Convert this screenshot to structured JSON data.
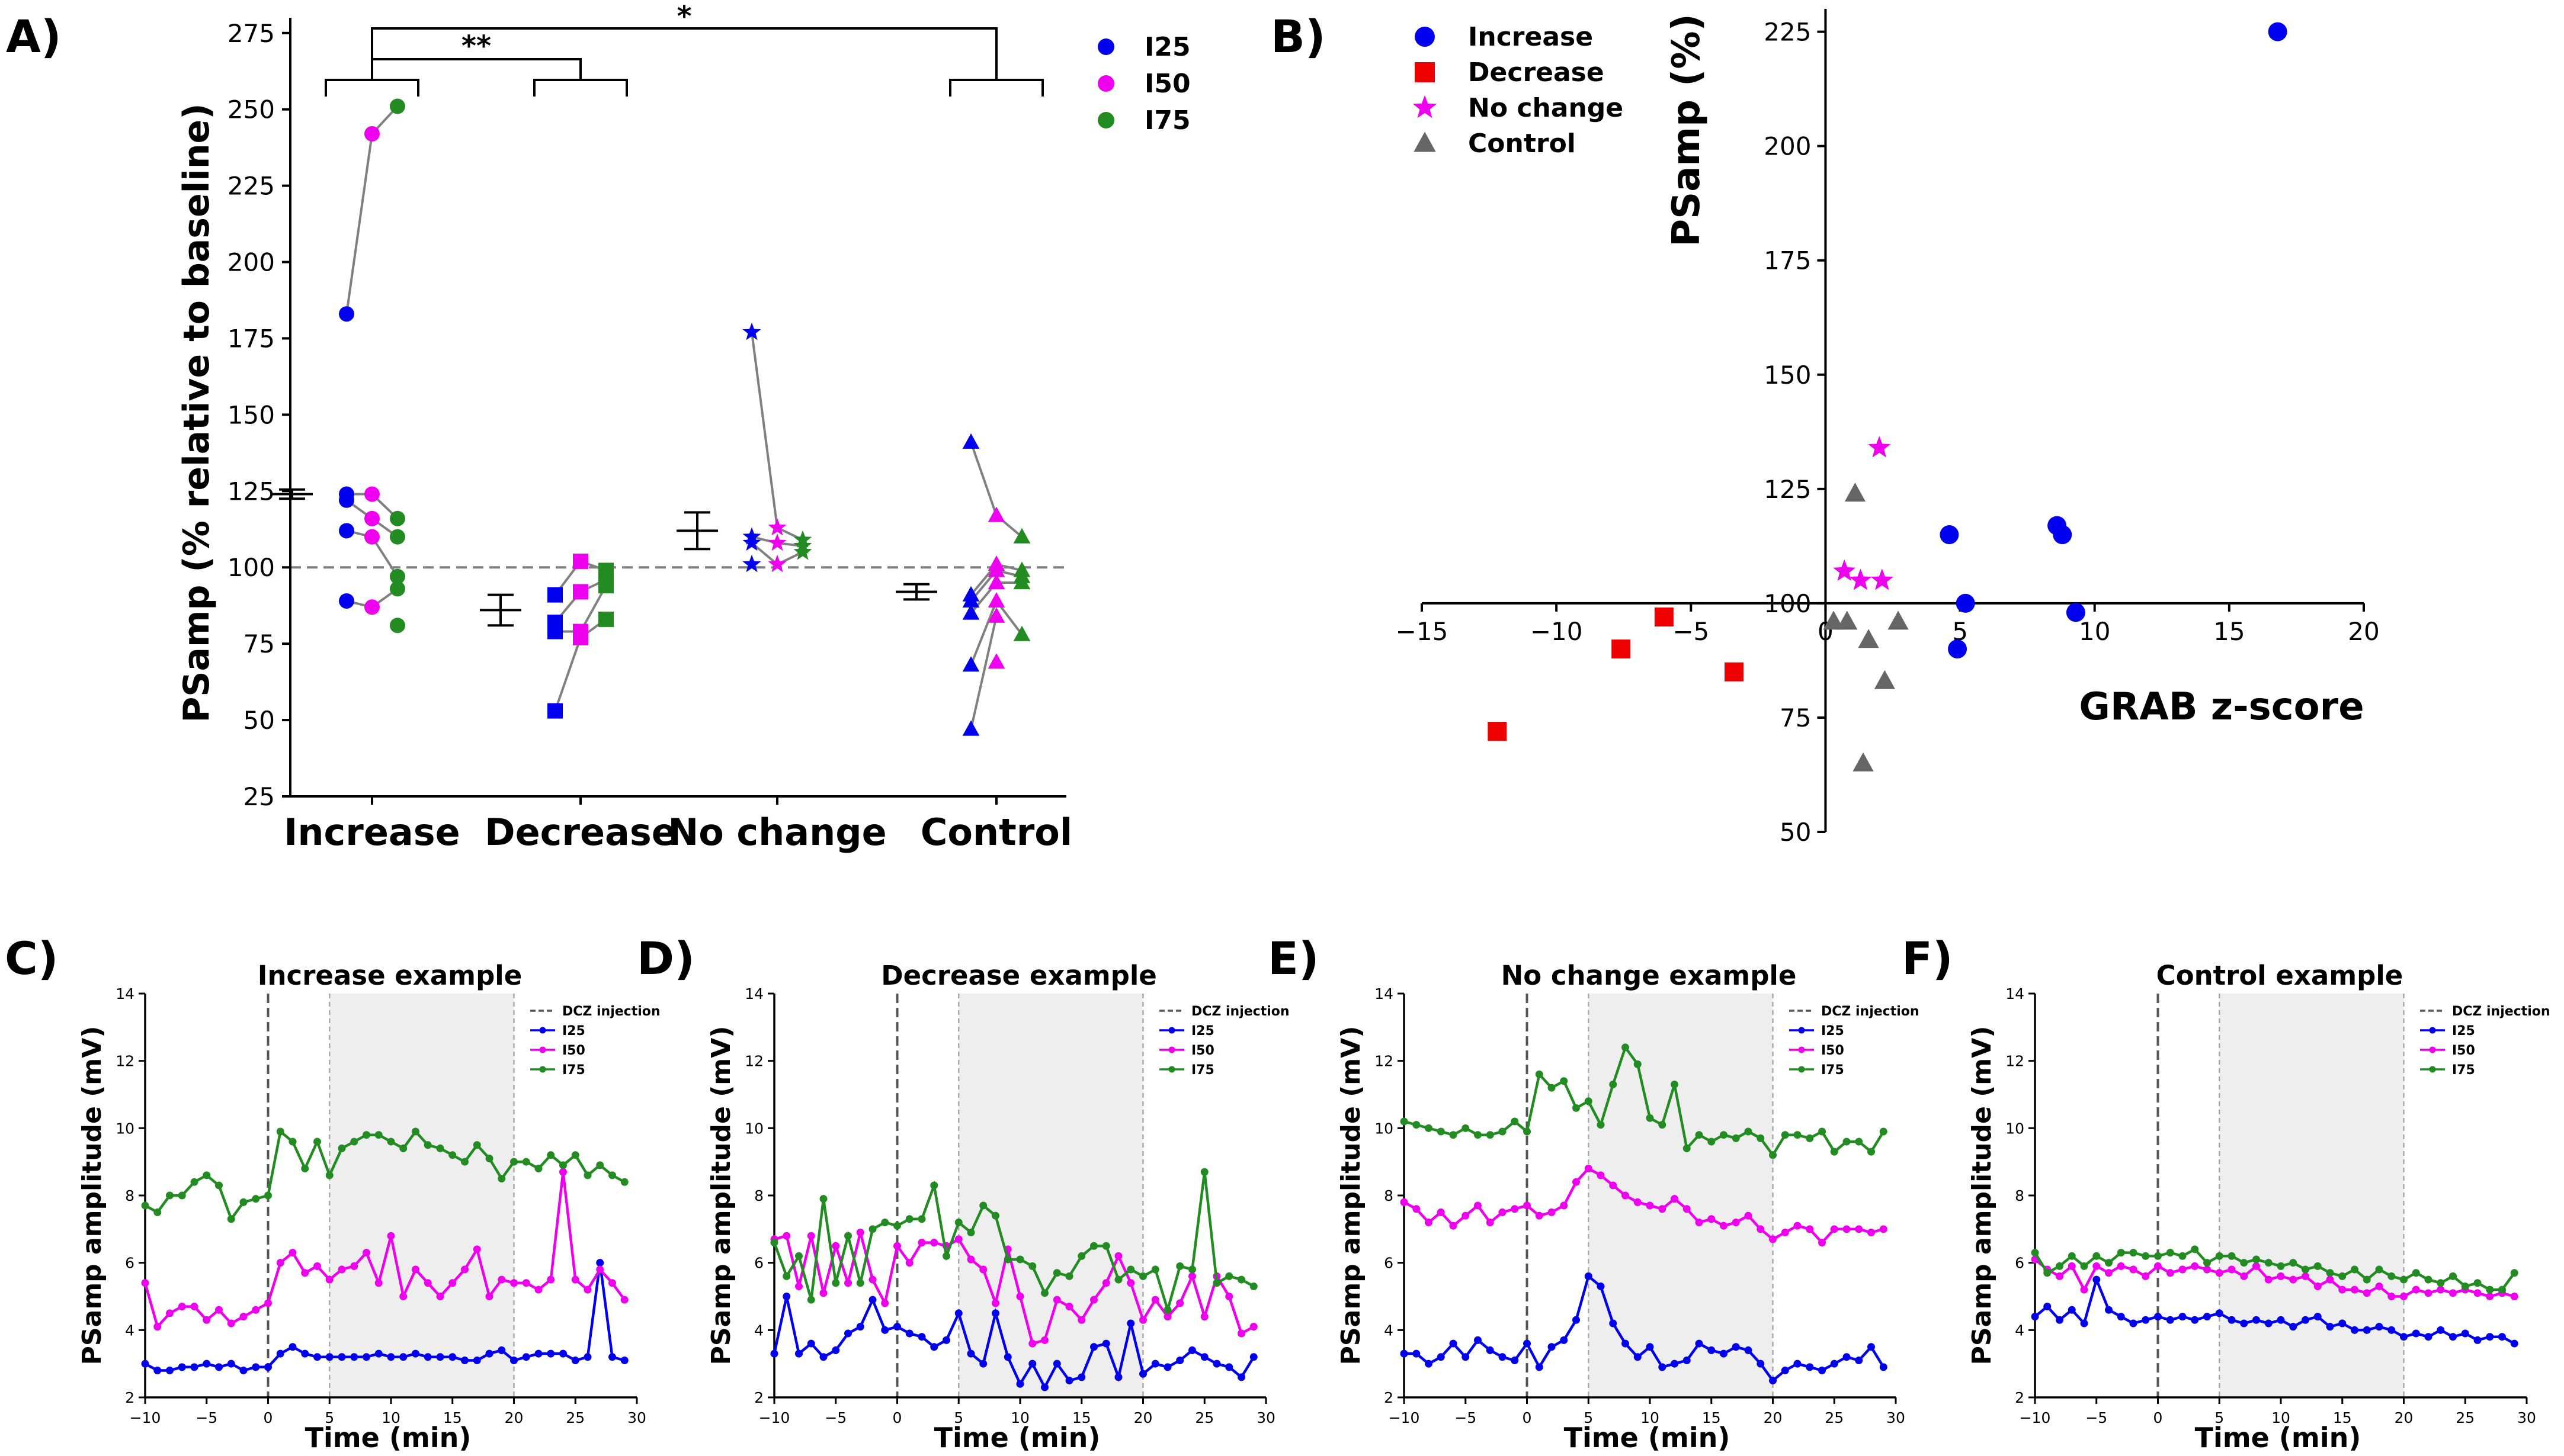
{
  "figure": {
    "panel_labels": [
      "A)",
      "B)",
      "C)",
      "D)",
      "E)",
      "F)"
    ],
    "colors": {
      "I25": "#0000ee",
      "I50": "#ee00ee",
      "I75": "#228b22",
      "Increase": "#0000ee",
      "Decrease": "#ee0000",
      "No change": "#ee00ee",
      "Control": "#666666",
      "connector": "#808080",
      "shade": "#eeeeee"
    }
  },
  "chart_data": [
    {
      "id": "A",
      "type": "scatter",
      "title": "",
      "xlabel": "",
      "ylabel": "PSamp (% relative to baseline)",
      "ylim": [
        25,
        280
      ],
      "yticks": [
        25,
        50,
        75,
        100,
        125,
        150,
        175,
        200,
        225,
        250,
        275
      ],
      "categories": [
        "Increase",
        "Decrease",
        "No change",
        "Control"
      ],
      "reference_line": 100,
      "legend": [
        {
          "name": "I25",
          "color": "#0000ee"
        },
        {
          "name": "I50",
          "color": "#ee00ee"
        },
        {
          "name": "I75",
          "color": "#228b22"
        }
      ],
      "significance": [
        {
          "label": "**",
          "from": "Increase",
          "to": "Decrease"
        },
        {
          "label": "*",
          "from": "Increase",
          "to": "Control"
        }
      ],
      "groups": [
        {
          "category": "Increase",
          "marker": "circle",
          "mean": 124,
          "error": 1.5,
          "I25": [
            183,
            124,
            122,
            112,
            89
          ],
          "I50": [
            242,
            124,
            116,
            110,
            87
          ],
          "I75": [
            251,
            116,
            110,
            97,
            93,
            81
          ]
        },
        {
          "category": "Decrease",
          "marker": "square",
          "mean": 86,
          "error": 5,
          "I25": [
            91,
            82,
            79,
            53
          ],
          "I50": [
            102,
            92,
            79,
            77
          ],
          "I75": [
            99,
            96,
            94,
            83
          ]
        },
        {
          "category": "No change",
          "marker": "star",
          "mean": 112,
          "error": 6,
          "I25": [
            177,
            110,
            108,
            101
          ],
          "I50": [
            113,
            108,
            101
          ],
          "I75": [
            109,
            107,
            105
          ]
        },
        {
          "category": "Control",
          "marker": "triangle",
          "mean": 92,
          "error": 2.5,
          "I25": [
            141,
            91,
            89,
            85,
            68,
            47
          ],
          "I50": [
            117,
            101,
            99,
            95,
            89,
            84,
            69
          ],
          "I75": [
            110,
            99,
            97,
            95,
            78
          ]
        }
      ]
    },
    {
      "id": "B",
      "type": "scatter",
      "title": "",
      "xlabel": "GRAB z-score",
      "ylabel": "PSamp (%)",
      "xlim": [
        -15,
        20
      ],
      "ylim": [
        50,
        230
      ],
      "xticks": [
        -15,
        -10,
        -5,
        0,
        5,
        10,
        15,
        20
      ],
      "yticks": [
        50,
        75,
        100,
        125,
        150,
        175,
        200,
        225
      ],
      "series": [
        {
          "name": "Increase",
          "marker": "circle",
          "color": "#0000ee",
          "points": [
            [
              16.8,
              225
            ],
            [
              4.6,
              115
            ],
            [
              8.6,
              117
            ],
            [
              8.8,
              115
            ],
            [
              5.2,
              100
            ],
            [
              9.3,
              98
            ],
            [
              4.9,
              90
            ]
          ]
        },
        {
          "name": "Decrease",
          "marker": "square",
          "color": "#ee0000",
          "points": [
            [
              -6.0,
              97
            ],
            [
              -7.6,
              90
            ],
            [
              -3.4,
              85
            ],
            [
              -12.2,
              72
            ]
          ]
        },
        {
          "name": "No change",
          "marker": "star",
          "color": "#ee00ee",
          "points": [
            [
              2.0,
              134
            ],
            [
              0.7,
              107
            ],
            [
              1.3,
              105
            ],
            [
              2.1,
              105
            ]
          ]
        },
        {
          "name": "Control",
          "marker": "triangle",
          "color": "#666666",
          "points": [
            [
              1.1,
              124
            ],
            [
              0.3,
              96
            ],
            [
              0.8,
              96
            ],
            [
              1.6,
              92
            ],
            [
              2.7,
              96
            ],
            [
              2.2,
              83
            ],
            [
              1.4,
              65
            ]
          ]
        }
      ]
    },
    {
      "id": "C",
      "type": "line",
      "title": "Increase example",
      "xlabel": "Time (min)",
      "ylabel": "PSamp amplitude (mV)",
      "xlim": [
        -10,
        30
      ],
      "ylim": [
        2,
        14
      ],
      "xticks": [
        -10,
        -5,
        0,
        5,
        10,
        15,
        20,
        25,
        30
      ],
      "yticks": [
        2,
        4,
        6,
        8,
        10,
        12,
        14
      ],
      "injection_time": 0,
      "shaded_range": [
        5,
        20
      ],
      "injection_label": "DCZ injection",
      "x": [
        -10,
        -9,
        -8,
        -7,
        -6,
        -5,
        -4,
        -3,
        -2,
        -1,
        0,
        1,
        2,
        3,
        4,
        5,
        6,
        7,
        8,
        9,
        10,
        11,
        12,
        13,
        14,
        15,
        16,
        17,
        18,
        19,
        20,
        21,
        22,
        23,
        24,
        25,
        26,
        27,
        28,
        29
      ],
      "series": [
        {
          "name": "I25",
          "color": "#0000ee",
          "values": [
            3.0,
            2.8,
            2.8,
            2.9,
            2.9,
            3.0,
            2.9,
            3.0,
            2.8,
            2.9,
            2.9,
            3.3,
            3.5,
            3.3,
            3.2,
            3.2,
            3.2,
            3.2,
            3.2,
            3.3,
            3.2,
            3.2,
            3.3,
            3.2,
            3.2,
            3.2,
            3.1,
            3.1,
            3.3,
            3.4,
            3.1,
            3.2,
            3.3,
            3.3,
            3.3,
            3.1,
            3.2,
            6.0,
            3.2,
            3.1
          ]
        },
        {
          "name": "I50",
          "color": "#ee00ee",
          "values": [
            5.4,
            4.1,
            4.5,
            4.7,
            4.7,
            4.3,
            4.6,
            4.2,
            4.4,
            4.6,
            4.8,
            6.0,
            6.3,
            5.7,
            5.9,
            5.5,
            5.8,
            5.9,
            6.3,
            5.4,
            6.8,
            5.0,
            5.8,
            5.4,
            5.0,
            5.4,
            5.8,
            6.4,
            5.0,
            5.5,
            5.4,
            5.4,
            5.2,
            5.5,
            8.7,
            5.5,
            5.2,
            5.8,
            5.4,
            4.9
          ]
        },
        {
          "name": "I75",
          "color": "#228b22",
          "values": [
            7.7,
            7.5,
            8.0,
            8.0,
            8.4,
            8.6,
            8.3,
            7.3,
            7.8,
            7.9,
            8.0,
            9.9,
            9.6,
            8.8,
            9.6,
            8.6,
            9.4,
            9.6,
            9.8,
            9.8,
            9.6,
            9.4,
            9.9,
            9.5,
            9.4,
            9.2,
            9.0,
            9.5,
            9.1,
            8.5,
            9.0,
            9.0,
            8.8,
            9.2,
            8.9,
            9.2,
            8.6,
            8.9,
            8.6,
            8.4
          ]
        }
      ]
    },
    {
      "id": "D",
      "type": "line",
      "title": "Decrease example",
      "xlabel": "Time (min)",
      "ylabel": "PSamp amplitude (mV)",
      "xlim": [
        -10,
        30
      ],
      "ylim": [
        2,
        14
      ],
      "xticks": [
        -10,
        -5,
        0,
        5,
        10,
        15,
        20,
        25,
        30
      ],
      "yticks": [
        2,
        4,
        6,
        8,
        10,
        12,
        14
      ],
      "injection_time": 0,
      "shaded_range": [
        5,
        20
      ],
      "injection_label": "DCZ injection",
      "x": [
        -10,
        -9,
        -8,
        -7,
        -6,
        -5,
        -4,
        -3,
        -2,
        -1,
        0,
        1,
        2,
        3,
        4,
        5,
        6,
        7,
        8,
        9,
        10,
        11,
        12,
        13,
        14,
        15,
        16,
        17,
        18,
        19,
        20,
        21,
        22,
        23,
        24,
        25,
        26,
        27,
        28,
        29
      ],
      "series": [
        {
          "name": "I25",
          "color": "#0000ee",
          "values": [
            3.3,
            5.0,
            3.3,
            3.6,
            3.2,
            3.4,
            3.9,
            4.1,
            4.9,
            4.0,
            4.1,
            3.9,
            3.8,
            3.5,
            3.7,
            4.5,
            3.3,
            3.0,
            4.5,
            3.2,
            2.4,
            3.0,
            2.3,
            3.0,
            2.5,
            2.6,
            3.5,
            3.6,
            2.6,
            4.2,
            2.7,
            3.0,
            2.9,
            3.1,
            3.4,
            3.2,
            3.0,
            2.9,
            2.6,
            3.2
          ]
        },
        {
          "name": "I50",
          "color": "#ee00ee",
          "values": [
            6.7,
            6.8,
            5.3,
            6.8,
            5.1,
            6.5,
            5.4,
            6.9,
            5.5,
            4.8,
            6.5,
            6.0,
            6.6,
            6.6,
            6.5,
            6.7,
            6.1,
            5.8,
            4.8,
            6.4,
            5.0,
            3.6,
            3.7,
            4.9,
            4.7,
            4.3,
            4.9,
            5.4,
            6.2,
            5.4,
            4.3,
            4.9,
            4.4,
            4.8,
            5.6,
            4.4,
            5.6,
            5.0,
            3.9,
            4.1
          ]
        },
        {
          "name": "I75",
          "color": "#228b22",
          "values": [
            6.6,
            5.6,
            6.2,
            4.9,
            7.9,
            5.4,
            6.8,
            5.4,
            7.0,
            7.2,
            7.1,
            7.3,
            7.3,
            8.3,
            6.2,
            7.2,
            6.9,
            7.7,
            7.4,
            6.1,
            6.1,
            5.9,
            5.1,
            5.7,
            5.6,
            6.2,
            6.5,
            6.5,
            5.5,
            5.8,
            5.6,
            5.8,
            4.6,
            5.9,
            5.8,
            8.7,
            5.4,
            5.6,
            5.5,
            5.3
          ]
        }
      ]
    },
    {
      "id": "E",
      "type": "line",
      "title": "No change example",
      "xlabel": "Time (min)",
      "ylabel": "PSamp amplitude (mV)",
      "xlim": [
        -10,
        30
      ],
      "ylim": [
        2,
        14
      ],
      "xticks": [
        -10,
        -5,
        0,
        5,
        10,
        15,
        20,
        25,
        30
      ],
      "yticks": [
        2,
        4,
        6,
        8,
        10,
        12,
        14
      ],
      "injection_time": 0,
      "shaded_range": [
        5,
        20
      ],
      "injection_label": "DCZ injection",
      "x": [
        -10,
        -9,
        -8,
        -7,
        -6,
        -5,
        -4,
        -3,
        -2,
        -1,
        0,
        1,
        2,
        3,
        4,
        5,
        6,
        7,
        8,
        9,
        10,
        11,
        12,
        13,
        14,
        15,
        16,
        17,
        18,
        19,
        20,
        21,
        22,
        23,
        24,
        25,
        26,
        27,
        28,
        29
      ],
      "series": [
        {
          "name": "I25",
          "color": "#0000ee",
          "values": [
            3.3,
            3.3,
            3.0,
            3.2,
            3.6,
            3.2,
            3.7,
            3.4,
            3.2,
            3.1,
            3.6,
            2.9,
            3.5,
            3.7,
            4.3,
            5.6,
            5.3,
            4.2,
            3.6,
            3.2,
            3.5,
            2.9,
            3.0,
            3.1,
            3.6,
            3.4,
            3.3,
            3.5,
            3.4,
            3.0,
            2.5,
            2.8,
            3.0,
            2.9,
            2.8,
            3.0,
            3.2,
            3.1,
            3.5,
            2.9
          ]
        },
        {
          "name": "I50",
          "color": "#ee00ee",
          "values": [
            7.8,
            7.6,
            7.2,
            7.5,
            7.1,
            7.4,
            7.7,
            7.2,
            7.5,
            7.6,
            7.7,
            7.4,
            7.5,
            7.7,
            8.4,
            8.8,
            8.6,
            8.3,
            8.0,
            7.8,
            7.7,
            7.6,
            7.9,
            7.6,
            7.2,
            7.3,
            7.1,
            7.2,
            7.4,
            7.0,
            6.7,
            6.9,
            7.1,
            7.0,
            6.6,
            7.0,
            7.0,
            7.0,
            6.9,
            7.0
          ]
        },
        {
          "name": "I75",
          "color": "#228b22",
          "values": [
            10.2,
            10.1,
            10.0,
            9.9,
            9.8,
            10.0,
            9.8,
            9.8,
            9.9,
            10.2,
            9.9,
            11.6,
            11.2,
            11.4,
            10.6,
            10.8,
            10.1,
            11.3,
            12.4,
            11.9,
            10.3,
            10.1,
            11.3,
            9.4,
            9.8,
            9.6,
            9.8,
            9.7,
            9.9,
            9.7,
            9.2,
            9.8,
            9.8,
            9.7,
            9.9,
            9.3,
            9.6,
            9.6,
            9.3,
            9.9
          ]
        }
      ]
    },
    {
      "id": "F",
      "type": "line",
      "title": "Control example",
      "xlabel": "Time (min)",
      "ylabel": "PSamp amplitude (mV)",
      "xlim": [
        -10,
        30
      ],
      "ylim": [
        2,
        14
      ],
      "xticks": [
        -10,
        -5,
        0,
        5,
        10,
        15,
        20,
        25,
        30
      ],
      "yticks": [
        2,
        4,
        6,
        8,
        10,
        12,
        14
      ],
      "injection_time": 0,
      "shaded_range": [
        5,
        20
      ],
      "injection_label": "DCZ injection",
      "x": [
        -10,
        -9,
        -8,
        -7,
        -6,
        -5,
        -4,
        -3,
        -2,
        -1,
        0,
        1,
        2,
        3,
        4,
        5,
        6,
        7,
        8,
        9,
        10,
        11,
        12,
        13,
        14,
        15,
        16,
        17,
        18,
        19,
        20,
        21,
        22,
        23,
        24,
        25,
        26,
        27,
        28,
        29
      ],
      "series": [
        {
          "name": "I25",
          "color": "#0000ee",
          "values": [
            4.4,
            4.7,
            4.3,
            4.6,
            4.2,
            5.5,
            4.6,
            4.4,
            4.2,
            4.3,
            4.4,
            4.3,
            4.4,
            4.3,
            4.4,
            4.5,
            4.3,
            4.2,
            4.3,
            4.2,
            4.3,
            4.1,
            4.3,
            4.4,
            4.1,
            4.2,
            4.0,
            4.0,
            4.1,
            4.0,
            3.8,
            3.9,
            3.8,
            4.0,
            3.8,
            3.9,
            3.7,
            3.8,
            3.8,
            3.6
          ]
        },
        {
          "name": "I50",
          "color": "#ee00ee",
          "values": [
            6.1,
            5.8,
            5.6,
            5.9,
            5.2,
            5.9,
            5.7,
            5.9,
            5.8,
            5.6,
            5.9,
            5.7,
            5.8,
            5.9,
            5.8,
            5.7,
            5.8,
            5.6,
            5.9,
            5.5,
            5.6,
            5.5,
            5.6,
            5.3,
            5.5,
            5.2,
            5.2,
            5.1,
            5.3,
            5.0,
            5.0,
            5.2,
            5.1,
            5.2,
            5.1,
            5.2,
            5.1,
            5.0,
            5.1,
            5.0
          ]
        },
        {
          "name": "I75",
          "color": "#228b22",
          "values": [
            6.3,
            5.7,
            5.9,
            6.2,
            5.9,
            6.2,
            6.0,
            6.3,
            6.3,
            6.2,
            6.2,
            6.3,
            6.2,
            6.4,
            6.0,
            6.2,
            6.2,
            6.0,
            6.1,
            6.0,
            5.9,
            6.0,
            5.8,
            5.9,
            5.7,
            5.6,
            5.8,
            5.5,
            5.8,
            5.6,
            5.5,
            5.7,
            5.5,
            5.4,
            5.6,
            5.3,
            5.4,
            5.2,
            5.2,
            5.7
          ]
        }
      ]
    }
  ]
}
